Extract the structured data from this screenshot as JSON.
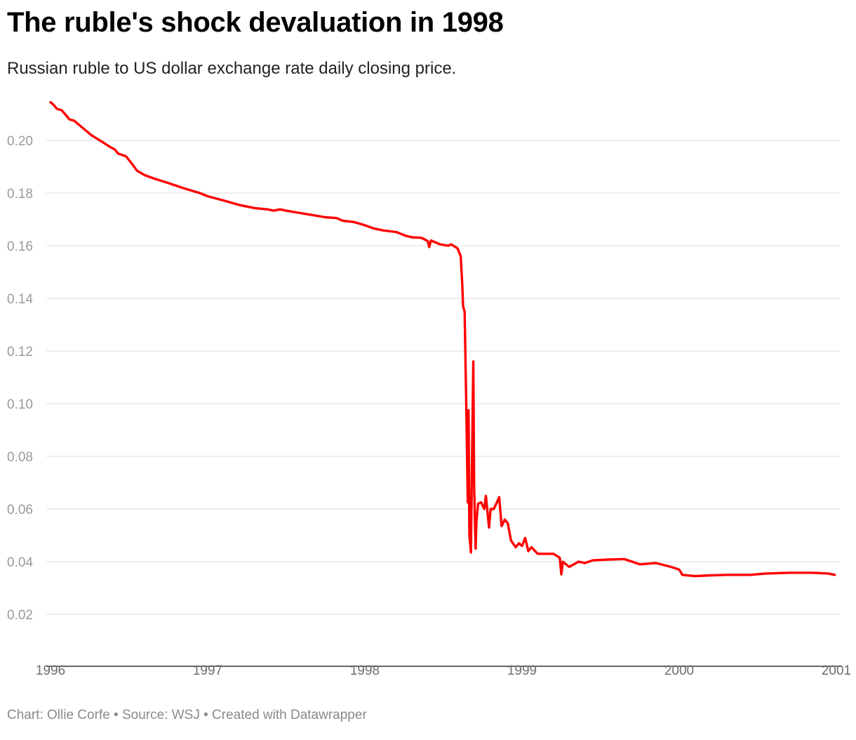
{
  "title": "The ruble's shock devaluation in 1998",
  "subtitle": "Russian ruble to US dollar exchange rate daily closing price.",
  "footer": "Chart: Ollie Corfe • Source: WSJ • Created with Datawrapper",
  "chart_data": {
    "type": "line",
    "title": "The ruble's shock devaluation in 1998",
    "subtitle": "Russian ruble to US dollar exchange rate daily closing price.",
    "xlabel": "",
    "ylabel": "",
    "xlim": [
      1996.0,
      2001.0
    ],
    "ylim": [
      0.0,
      0.22
    ],
    "grid": true,
    "line_color": "#ff0000",
    "x_ticks": [
      {
        "value": 1996,
        "label": "1996"
      },
      {
        "value": 1997,
        "label": "1997"
      },
      {
        "value": 1998,
        "label": "1998"
      },
      {
        "value": 1999,
        "label": "1999"
      },
      {
        "value": 2000,
        "label": "2000"
      },
      {
        "value": 2001,
        "label": "2001"
      }
    ],
    "y_ticks": [
      {
        "value": 0.02,
        "label": "0.02"
      },
      {
        "value": 0.04,
        "label": "0.04"
      },
      {
        "value": 0.06,
        "label": "0.06"
      },
      {
        "value": 0.08,
        "label": "0.08"
      },
      {
        "value": 0.1,
        "label": "0.10"
      },
      {
        "value": 0.12,
        "label": "0.12"
      },
      {
        "value": 0.14,
        "label": "0.14"
      },
      {
        "value": 0.16,
        "label": "0.16"
      },
      {
        "value": 0.18,
        "label": "0.18"
      },
      {
        "value": 0.2,
        "label": "0.20"
      }
    ],
    "series": [
      {
        "points": [
          [
            1996.0,
            0.2145
          ],
          [
            1996.02,
            0.2135
          ],
          [
            1996.04,
            0.212
          ],
          [
            1996.07,
            0.2115
          ],
          [
            1996.1,
            0.2095
          ],
          [
            1996.12,
            0.208
          ],
          [
            1996.15,
            0.2075
          ],
          [
            1996.18,
            0.206
          ],
          [
            1996.22,
            0.204
          ],
          [
            1996.26,
            0.202
          ],
          [
            1996.3,
            0.2005
          ],
          [
            1996.34,
            0.199
          ],
          [
            1996.38,
            0.1975
          ],
          [
            1996.41,
            0.1965
          ],
          [
            1996.43,
            0.195
          ],
          [
            1996.48,
            0.194
          ],
          [
            1996.52,
            0.191
          ],
          [
            1996.55,
            0.1885
          ],
          [
            1996.6,
            0.1868
          ],
          [
            1996.66,
            0.1855
          ],
          [
            1996.75,
            0.1838
          ],
          [
            1996.85,
            0.1818
          ],
          [
            1996.95,
            0.18
          ],
          [
            1997.0,
            0.1788
          ],
          [
            1997.1,
            0.1772
          ],
          [
            1997.2,
            0.1755
          ],
          [
            1997.3,
            0.1743
          ],
          [
            1997.38,
            0.1738
          ],
          [
            1997.42,
            0.1733
          ],
          [
            1997.46,
            0.1738
          ],
          [
            1997.5,
            0.1733
          ],
          [
            1997.55,
            0.1728
          ],
          [
            1997.65,
            0.1718
          ],
          [
            1997.75,
            0.1708
          ],
          [
            1997.82,
            0.1705
          ],
          [
            1997.86,
            0.1695
          ],
          [
            1997.93,
            0.169
          ],
          [
            1998.0,
            0.1678
          ],
          [
            1998.06,
            0.1665
          ],
          [
            1998.12,
            0.1658
          ],
          [
            1998.2,
            0.1652
          ],
          [
            1998.26,
            0.1638
          ],
          [
            1998.3,
            0.1632
          ],
          [
            1998.36,
            0.163
          ],
          [
            1998.4,
            0.1618
          ],
          [
            1998.41,
            0.1595
          ],
          [
            1998.42,
            0.162
          ],
          [
            1998.48,
            0.1605
          ],
          [
            1998.53,
            0.16
          ],
          [
            1998.55,
            0.1605
          ],
          [
            1998.59,
            0.159
          ],
          [
            1998.61,
            0.156
          ],
          [
            1998.62,
            0.145
          ],
          [
            1998.625,
            0.137
          ],
          [
            1998.635,
            0.135
          ],
          [
            1998.645,
            0.1
          ],
          [
            1998.655,
            0.0625
          ],
          [
            1998.66,
            0.0975
          ],
          [
            1998.665,
            0.05
          ],
          [
            1998.675,
            0.0435
          ],
          [
            1998.68,
            0.07
          ],
          [
            1998.69,
            0.116
          ],
          [
            1998.695,
            0.07
          ],
          [
            1998.7,
            0.056
          ],
          [
            1998.705,
            0.045
          ],
          [
            1998.71,
            0.055
          ],
          [
            1998.72,
            0.062
          ],
          [
            1998.74,
            0.0625
          ],
          [
            1998.76,
            0.06
          ],
          [
            1998.77,
            0.065
          ],
          [
            1998.79,
            0.053
          ],
          [
            1998.8,
            0.06
          ],
          [
            1998.82,
            0.06
          ],
          [
            1998.84,
            0.0625
          ],
          [
            1998.855,
            0.0645
          ],
          [
            1998.87,
            0.0535
          ],
          [
            1998.89,
            0.056
          ],
          [
            1998.91,
            0.0545
          ],
          [
            1998.93,
            0.048
          ],
          [
            1998.96,
            0.0455
          ],
          [
            1998.98,
            0.047
          ],
          [
            1999.0,
            0.046
          ],
          [
            1999.02,
            0.049
          ],
          [
            1999.04,
            0.044
          ],
          [
            1999.06,
            0.0455
          ],
          [
            1999.1,
            0.043
          ],
          [
            1999.2,
            0.043
          ],
          [
            1999.24,
            0.0415
          ],
          [
            1999.25,
            0.0352
          ],
          [
            1999.26,
            0.04
          ],
          [
            1999.3,
            0.038
          ],
          [
            1999.36,
            0.04
          ],
          [
            1999.4,
            0.0395
          ],
          [
            1999.45,
            0.0405
          ],
          [
            1999.55,
            0.0408
          ],
          [
            1999.65,
            0.041
          ],
          [
            1999.7,
            0.04
          ],
          [
            1999.75,
            0.039
          ],
          [
            1999.85,
            0.0395
          ],
          [
            1999.95,
            0.038
          ],
          [
            2000.0,
            0.037
          ],
          [
            2000.02,
            0.035
          ],
          [
            2000.1,
            0.0345
          ],
          [
            2000.2,
            0.0348
          ],
          [
            2000.3,
            0.035
          ],
          [
            2000.45,
            0.035
          ],
          [
            2000.55,
            0.0355
          ],
          [
            2000.7,
            0.0358
          ],
          [
            2000.85,
            0.0358
          ],
          [
            2000.95,
            0.0355
          ],
          [
            2000.99,
            0.035
          ]
        ]
      }
    ]
  }
}
